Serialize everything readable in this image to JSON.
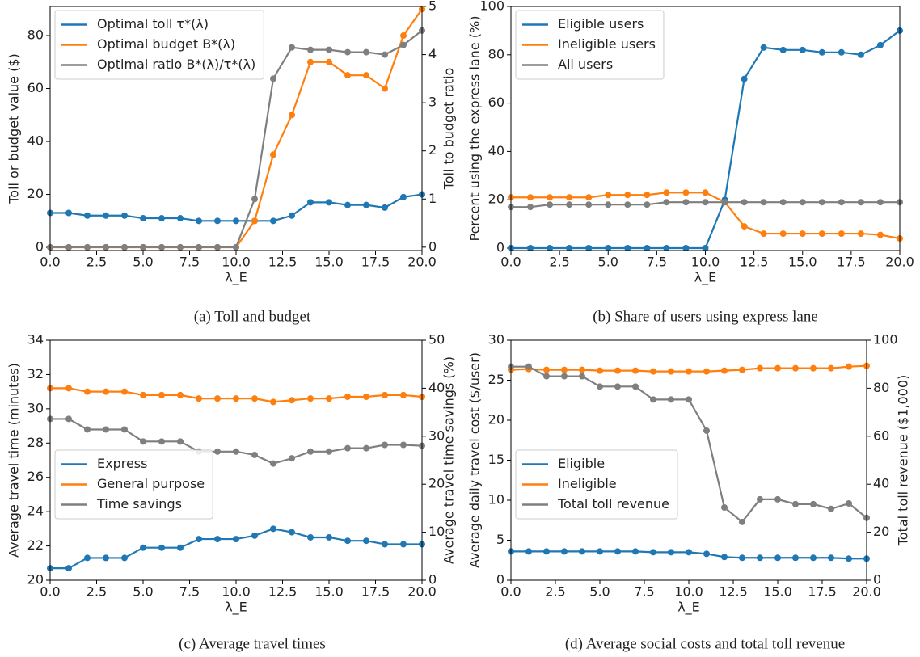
{
  "chart_data": [
    {
      "type": "line",
      "caption": "(a) Toll and budget",
      "xlabel": "λ_E",
      "ylabel": "Toll or budget value ($)",
      "y2label": "Toll to budget ratio",
      "x": [
        0,
        1,
        2,
        3,
        4,
        5,
        6,
        7,
        8,
        9,
        10,
        11,
        12,
        13,
        14,
        15,
        16,
        17,
        18,
        19,
        20
      ],
      "xlim": [
        0,
        20
      ],
      "xticks": [
        {
          "value": 0,
          "label": "0.0"
        },
        {
          "value": 2.5,
          "label": "2.5"
        },
        {
          "value": 5,
          "label": "5.0"
        },
        {
          "value": 7.5,
          "label": "7.5"
        },
        {
          "value": 10,
          "label": "10.0"
        },
        {
          "value": 12.5,
          "label": "12.5"
        },
        {
          "value": 15,
          "label": "15.0"
        },
        {
          "value": 17.5,
          "label": "17.5"
        },
        {
          "value": 20,
          "label": "20.0"
        }
      ],
      "ylim": [
        -1.2,
        91
      ],
      "yticks": [
        0,
        20,
        40,
        60,
        80
      ],
      "y2lim": [
        -0.07,
        5
      ],
      "y2ticks": [
        0,
        1,
        2,
        3,
        4,
        5
      ],
      "legend": "upper left",
      "series": [
        {
          "name": "Optimal toll τ*(λ)",
          "color": "#1f77b4",
          "values": [
            13,
            13,
            12,
            12,
            12,
            11,
            11,
            11,
            10,
            10,
            10,
            10,
            10,
            12,
            17,
            17,
            16,
            16,
            15,
            19,
            20
          ]
        },
        {
          "name": "Optimal budget B*(λ)",
          "color": "#ff7f0e",
          "values": [
            0,
            0,
            0,
            0,
            0,
            0,
            0,
            0,
            0,
            0,
            0,
            10,
            35,
            50,
            70,
            70,
            65,
            65,
            60,
            80,
            90
          ]
        },
        {
          "name": "Optimal ratio B*(λ)/τ*(λ)",
          "color": "#7f7f7f",
          "axis": "y2",
          "values": [
            0,
            0,
            0,
            0,
            0,
            0,
            0,
            0,
            0,
            0,
            0,
            1.0,
            3.5,
            4.15,
            4.1,
            4.1,
            4.05,
            4.05,
            4.0,
            4.2,
            4.5
          ]
        }
      ]
    },
    {
      "type": "line",
      "caption": "(b) Share of users using express lane",
      "xlabel": "λ_E",
      "ylabel": "Percent using the express lane (%)",
      "x": [
        0,
        1,
        2,
        3,
        4,
        5,
        6,
        7,
        8,
        9,
        10,
        11,
        12,
        13,
        14,
        15,
        16,
        17,
        18,
        19,
        20
      ],
      "xlim": [
        0,
        20
      ],
      "xticks": [
        {
          "value": 0,
          "label": "0.0"
        },
        {
          "value": 2.5,
          "label": "2.5"
        },
        {
          "value": 5,
          "label": "5.0"
        },
        {
          "value": 7.5,
          "label": "7.5"
        },
        {
          "value": 10,
          "label": "10.0"
        },
        {
          "value": 12.5,
          "label": "12.5"
        },
        {
          "value": 15,
          "label": "15.0"
        },
        {
          "value": 17.5,
          "label": "17.5"
        },
        {
          "value": 20,
          "label": "20.0"
        }
      ],
      "ylim": [
        -1,
        100
      ],
      "yticks": [
        0,
        20,
        40,
        60,
        80,
        100
      ],
      "legend": "upper left",
      "series": [
        {
          "name": "Eligible users",
          "color": "#1f77b4",
          "values": [
            0,
            0,
            0,
            0,
            0,
            0,
            0,
            0,
            0,
            0,
            0,
            20,
            70,
            83,
            82,
            82,
            81,
            81,
            80,
            84,
            90
          ]
        },
        {
          "name": "Ineligible users",
          "color": "#ff7f0e",
          "values": [
            21,
            21,
            21,
            21,
            21,
            22,
            22,
            22,
            23,
            23,
            23,
            19,
            9,
            6,
            6,
            6,
            6,
            6,
            6,
            5.5,
            4
          ]
        },
        {
          "name": "All users",
          "color": "#7f7f7f",
          "values": [
            17,
            17,
            18,
            18,
            18,
            18,
            18,
            18,
            19,
            19,
            19,
            19,
            19,
            19,
            19,
            19,
            19,
            19,
            19,
            19,
            19
          ]
        }
      ]
    },
    {
      "type": "line",
      "caption": "(c) Average travel times",
      "xlabel": "λ_E",
      "ylabel": "Average travel time (minutes)",
      "y2label": "Average travel time savings (%)",
      "x": [
        0,
        1,
        2,
        3,
        4,
        5,
        6,
        7,
        8,
        9,
        10,
        11,
        12,
        13,
        14,
        15,
        16,
        17,
        18,
        19,
        20
      ],
      "xlim": [
        0,
        20
      ],
      "xticks": [
        {
          "value": 0,
          "label": "0.0"
        },
        {
          "value": 2.5,
          "label": "2.5"
        },
        {
          "value": 5,
          "label": "5.0"
        },
        {
          "value": 7.5,
          "label": "7.5"
        },
        {
          "value": 10,
          "label": "10.0"
        },
        {
          "value": 12.5,
          "label": "12.5"
        },
        {
          "value": 15,
          "label": "15.0"
        },
        {
          "value": 17.5,
          "label": "17.5"
        },
        {
          "value": 20,
          "label": "20.0"
        }
      ],
      "ylim": [
        20,
        34
      ],
      "yticks": [
        20,
        22,
        24,
        26,
        28,
        30,
        32,
        34
      ],
      "y2lim": [
        0,
        50
      ],
      "y2ticks": [
        0,
        10,
        20,
        30,
        40,
        50
      ],
      "legend": "center left",
      "series": [
        {
          "name": "Express",
          "color": "#1f77b4",
          "values": [
            20.7,
            20.7,
            21.3,
            21.3,
            21.3,
            21.9,
            21.9,
            21.9,
            22.4,
            22.4,
            22.4,
            22.6,
            23.0,
            22.8,
            22.5,
            22.5,
            22.3,
            22.3,
            22.1,
            22.1,
            22.1
          ]
        },
        {
          "name": "General purpose",
          "color": "#ff7f0e",
          "values": [
            31.2,
            31.2,
            31.0,
            31.0,
            31.0,
            30.8,
            30.8,
            30.8,
            30.6,
            30.6,
            30.6,
            30.6,
            30.4,
            30.5,
            30.6,
            30.6,
            30.7,
            30.7,
            30.8,
            30.8,
            30.7
          ]
        },
        {
          "name": "Time savings",
          "color": "#7f7f7f",
          "axis": "y2",
          "values": [
            33.6,
            33.6,
            31.4,
            31.4,
            31.4,
            28.9,
            28.9,
            28.9,
            26.8,
            26.8,
            26.8,
            26.1,
            24.3,
            25.4,
            26.8,
            26.8,
            27.5,
            27.5,
            28.2,
            28.2,
            28.0
          ]
        }
      ]
    },
    {
      "type": "line",
      "caption": "(d) Average social costs and total toll revenue",
      "xlabel": "λ_E",
      "ylabel": "Average daily travel cost ($/user)",
      "y2label": "Total toll revenue ($1,000)",
      "x": [
        0,
        1,
        2,
        3,
        4,
        5,
        6,
        7,
        8,
        9,
        10,
        11,
        12,
        13,
        14,
        15,
        16,
        17,
        18,
        19,
        20
      ],
      "xlim": [
        0,
        20
      ],
      "xticks": [
        {
          "value": 0,
          "label": "0.0"
        },
        {
          "value": 2.5,
          "label": "2.5"
        },
        {
          "value": 5,
          "label": "5.0"
        },
        {
          "value": 7.5,
          "label": "7.5"
        },
        {
          "value": 10,
          "label": "10.0"
        },
        {
          "value": 12.5,
          "label": "12.5"
        },
        {
          "value": 15,
          "label": "15.0"
        },
        {
          "value": 17.5,
          "label": "17.5"
        },
        {
          "value": 20,
          "label": "20.0"
        }
      ],
      "ylim": [
        0,
        30
      ],
      "yticks": [
        0,
        5,
        10,
        15,
        20,
        25,
        30
      ],
      "y2lim": [
        0,
        100
      ],
      "y2ticks": [
        0,
        20,
        40,
        60,
        80,
        100
      ],
      "legend": "center left",
      "series": [
        {
          "name": "Eligible",
          "color": "#1f77b4",
          "values": [
            3.6,
            3.6,
            3.6,
            3.6,
            3.6,
            3.6,
            3.6,
            3.6,
            3.5,
            3.5,
            3.5,
            3.3,
            2.9,
            2.8,
            2.8,
            2.8,
            2.8,
            2.8,
            2.8,
            2.7,
            2.7
          ]
        },
        {
          "name": "Ineligible",
          "color": "#ff7f0e",
          "values": [
            26.3,
            26.4,
            26.3,
            26.3,
            26.3,
            26.2,
            26.2,
            26.2,
            26.1,
            26.1,
            26.1,
            26.1,
            26.2,
            26.3,
            26.5,
            26.5,
            26.5,
            26.5,
            26.5,
            26.7,
            26.8
          ]
        },
        {
          "name": "Total toll revenue",
          "color": "#7f7f7f",
          "axis": "y2",
          "values": [
            89,
            89,
            85,
            85,
            85,
            80.7,
            80.7,
            80.7,
            75.3,
            75.3,
            75.3,
            62.3,
            30.3,
            24.3,
            33.7,
            33.7,
            31.7,
            31.7,
            29.7,
            32,
            26
          ]
        }
      ]
    }
  ]
}
